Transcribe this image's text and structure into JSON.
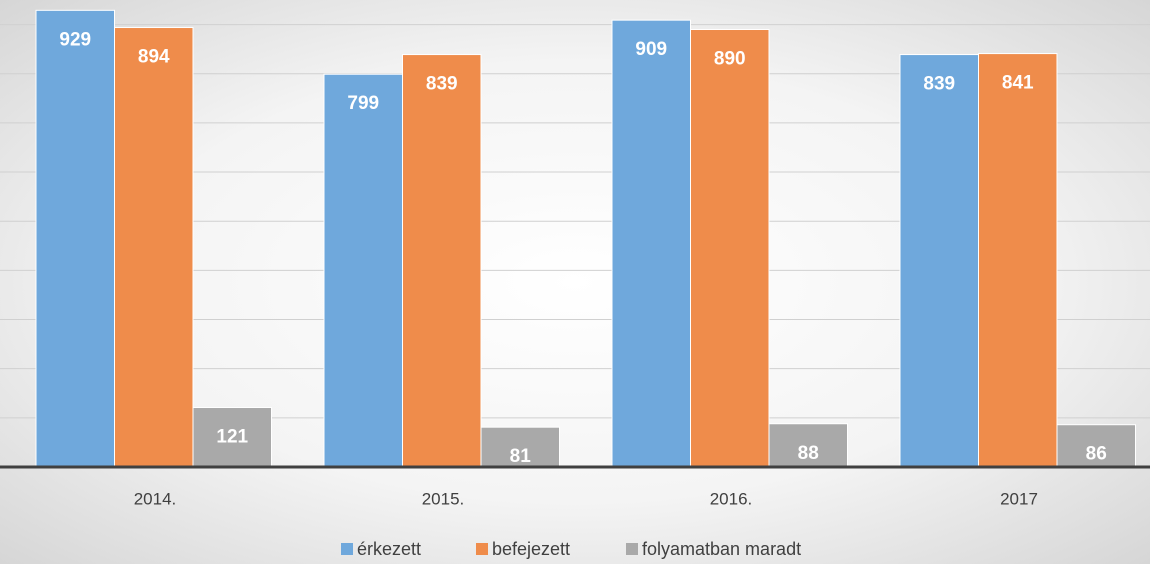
{
  "chart_data": {
    "type": "bar",
    "categories": [
      "2014.",
      "2015.",
      "2016.",
      "2017"
    ],
    "series": [
      {
        "name": "érkezett",
        "color": "#6fa8dc",
        "values": [
          929,
          799,
          909,
          839
        ]
      },
      {
        "name": "befejezett",
        "color": "#ef8c4b",
        "values": [
          894,
          839,
          890,
          841
        ]
      },
      {
        "name": "folyamatban maradt",
        "color": "#a9a9a9",
        "values": [
          121,
          81,
          88,
          86
        ]
      }
    ],
    "ylim": [
      0,
      950
    ],
    "yticks": [
      0,
      100,
      200,
      300,
      400,
      500,
      600,
      700,
      800,
      900
    ],
    "grid": true,
    "legend": "bottom"
  }
}
